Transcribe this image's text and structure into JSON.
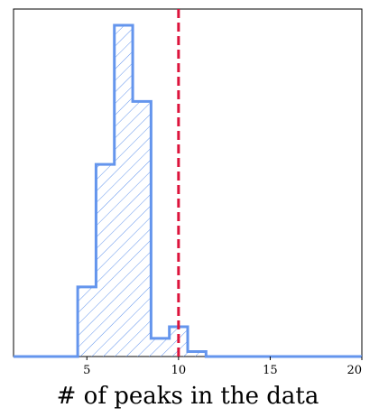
{
  "chart_data": {
    "type": "histogram",
    "xlabel": "# of peaks in the data",
    "ylabel": "",
    "xlim": [
      1,
      20
    ],
    "x_ticks": [
      5,
      10,
      15,
      20
    ],
    "y_ticks": [],
    "grid": false,
    "bins": [
      {
        "x0": 4.5,
        "x1": 5.5,
        "value": 0.21
      },
      {
        "x0": 5.5,
        "x1": 6.5,
        "value": 0.58
      },
      {
        "x0": 6.5,
        "x1": 7.5,
        "value": 1.0
      },
      {
        "x0": 7.5,
        "x1": 8.5,
        "value": 0.77
      },
      {
        "x0": 8.5,
        "x1": 9.5,
        "value": 0.055
      },
      {
        "x0": 9.5,
        "x1": 10.5,
        "value": 0.09
      },
      {
        "x0": 10.5,
        "x1": 11.5,
        "value": 0.015
      }
    ],
    "reference_line": {
      "x": 10,
      "style": "dashed"
    },
    "colors": {
      "histogram": "#6495ed",
      "reference_line": "#dc143c"
    }
  }
}
